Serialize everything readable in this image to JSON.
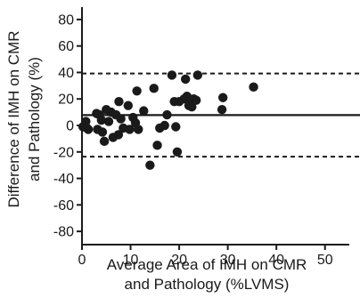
{
  "chart_data": {
    "type": "scatter",
    "xlabel_lines": [
      "Average Area of IMH on CMR",
      "and Pathology (%LVMS)"
    ],
    "ylabel_lines": [
      "Difference of IMH on CMR",
      "and Pathology (%)"
    ],
    "xlim": [
      0,
      55
    ],
    "ylim": [
      -90,
      88
    ],
    "xticks": [
      0,
      10,
      20,
      30,
      40,
      50
    ],
    "yticks": [
      -80,
      -60,
      -40,
      -20,
      0,
      20,
      40,
      60,
      80
    ],
    "reference_lines": {
      "mean": 7.8,
      "upper_limit": 39.2,
      "lower_limit": -23.6
    },
    "marker_color": "#1a1a1a",
    "points": [
      [
        0.2,
        -1
      ],
      [
        0.8,
        3
      ],
      [
        1.3,
        -3
      ],
      [
        1.0,
        -2
      ],
      [
        3.0,
        9
      ],
      [
        3.2,
        -3
      ],
      [
        3.6,
        8
      ],
      [
        4.2,
        -5
      ],
      [
        4.6,
        -12
      ],
      [
        4.0,
        4
      ],
      [
        5.0,
        12
      ],
      [
        5.5,
        3
      ],
      [
        6.0,
        10
      ],
      [
        6.4,
        -9
      ],
      [
        7.0,
        8
      ],
      [
        7.5,
        -7
      ],
      [
        7.6,
        18
      ],
      [
        8.0,
        5
      ],
      [
        8.5,
        -2
      ],
      [
        9.5,
        15
      ],
      [
        9.8,
        -3
      ],
      [
        10.5,
        6
      ],
      [
        11.0,
        2
      ],
      [
        11.3,
        26
      ],
      [
        11.6,
        -3
      ],
      [
        12.7,
        11
      ],
      [
        14.0,
        -30
      ],
      [
        14.8,
        28
      ],
      [
        15.5,
        -15
      ],
      [
        16.0,
        -2
      ],
      [
        17.0,
        0
      ],
      [
        17.5,
        8
      ],
      [
        18.5,
        38
      ],
      [
        19.0,
        18
      ],
      [
        19.3,
        -1
      ],
      [
        19.6,
        -20
      ],
      [
        20.0,
        18
      ],
      [
        21.0,
        20
      ],
      [
        21.3,
        35
      ],
      [
        21.6,
        22
      ],
      [
        22.0,
        15
      ],
      [
        22.3,
        17
      ],
      [
        22.6,
        14
      ],
      [
        23.0,
        20
      ],
      [
        23.5,
        19
      ],
      [
        23.8,
        38
      ],
      [
        28.8,
        12
      ],
      [
        29.0,
        21
      ],
      [
        35.3,
        29
      ]
    ]
  }
}
